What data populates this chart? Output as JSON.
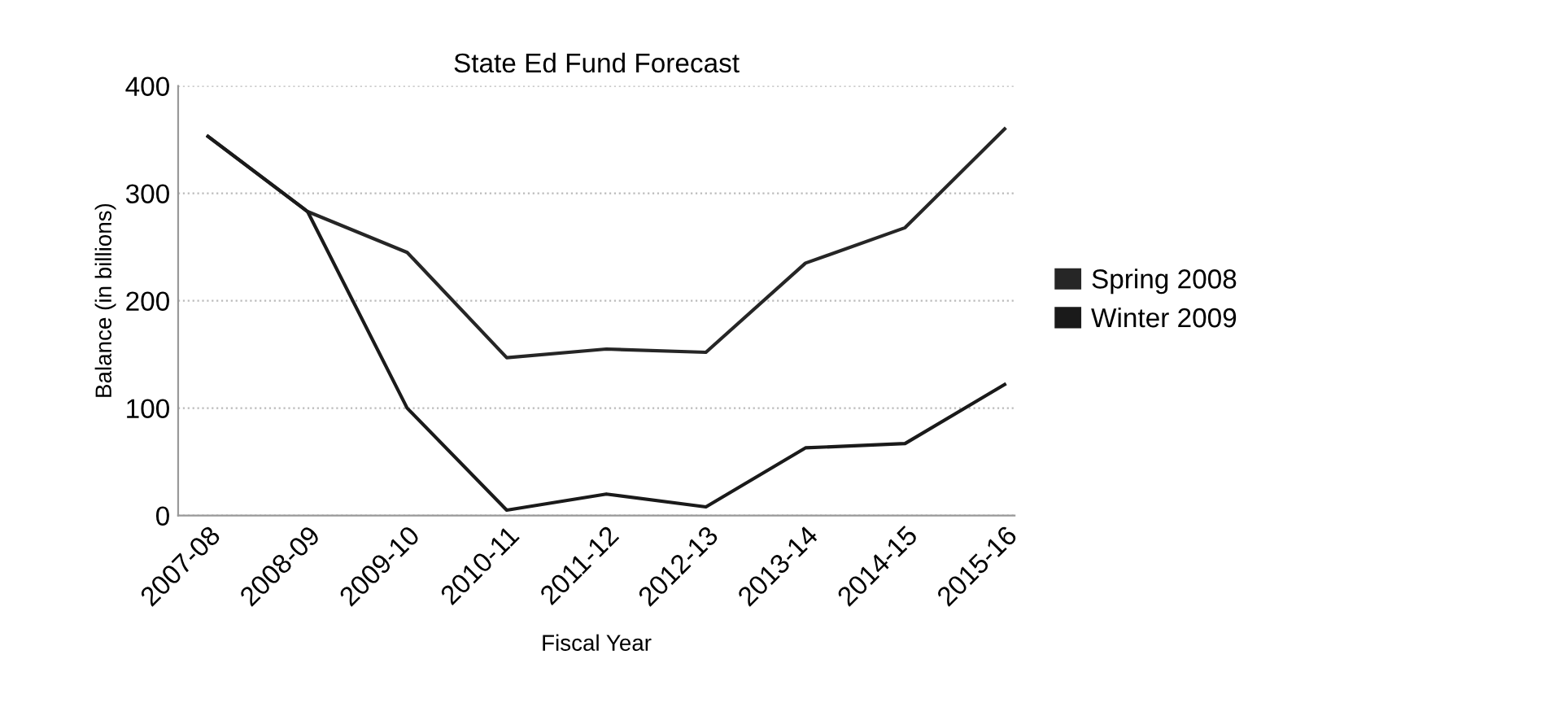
{
  "chart_data": {
    "type": "line",
    "title": "State Ed Fund Forecast",
    "xlabel": "Fiscal Year",
    "ylabel": "Balance (in billions)",
    "categories": [
      "2007-08",
      "2008-09",
      "2009-10",
      "2010-11",
      "2011-12",
      "2012-13",
      "2013-14",
      "2014-15",
      "2015-16"
    ],
    "series": [
      {
        "name": "Spring 2008",
        "color": "#262626",
        "values": [
          353,
          283,
          245,
          147,
          155,
          152,
          235,
          268,
          360
        ]
      },
      {
        "name": "Winter 2009",
        "color": "#1a1a1a",
        "values": [
          353,
          283,
          100,
          5,
          20,
          8,
          63,
          67,
          122
        ]
      }
    ],
    "ylim": [
      0,
      400
    ],
    "yticks": [
      0,
      100,
      200,
      300,
      400
    ],
    "grid": "y",
    "legend": "right",
    "marker": "none",
    "line_style": "solid"
  }
}
